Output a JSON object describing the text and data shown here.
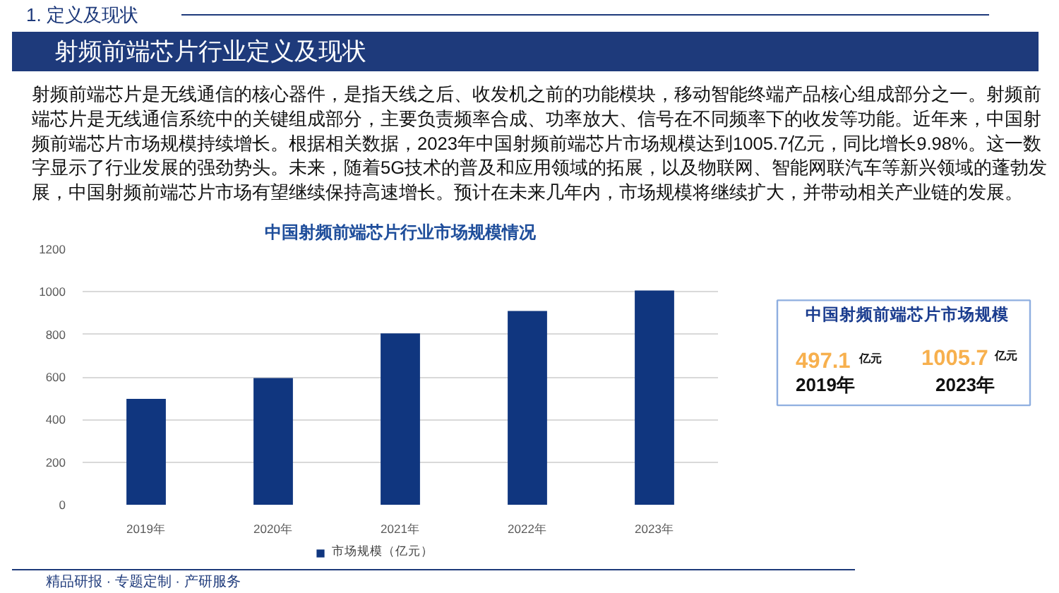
{
  "chart_data": {
    "type": "bar",
    "title": "中国射频前端芯片行业市场规模情况",
    "categories": [
      "2019年",
      "2020年",
      "2021年",
      "2022年",
      "2023年"
    ],
    "series": [
      {
        "name": "市场规模（亿元）",
        "color": "#10367f",
        "values": [
          497.1,
          595,
          805,
          910,
          1005.7
        ]
      }
    ],
    "ylim": [
      0,
      1200
    ],
    "yticks": [
      0,
      200,
      400,
      600,
      800,
      1000,
      1200
    ],
    "grid": "y",
    "legend": "bottom",
    "annotations": [
      "1. 定义及现状",
      "射频前端芯片行业定义及现状",
      "射频前端芯片是无线通信的核心器件，是指天线之后、收发机之前的功能模块，移动智能终端产品核心组成部分之一。射频前端芯片是无线通信系统中的关键组成部分，主要负责频率合成、功率放大、信号在不同频率下的收发等功能。近年来，中国射频前端芯片市场规模持续增长。根据相关数据，2023年中国射频前端芯片市场规模达到1005.7亿元，同比增长9.98%。这一数字显示了行业发展的强劲势头。未来，随着5G技术的普及和应用领域的拓展，以及物联网、智能网联汽车等新兴领域的蓬勃发展，中国射频前端芯片市场有望继续保持高速增长。预计在未来几年内，市场规模将继续扩大，并带动相关产业链的发展。",
      "中国射频前端芯片市场规模",
      "497.1",
      "亿元",
      "2019年",
      "1005.7",
      "亿元",
      "2023年",
      "精品研报 · 专题定制 · 产研服务"
    ]
  }
}
